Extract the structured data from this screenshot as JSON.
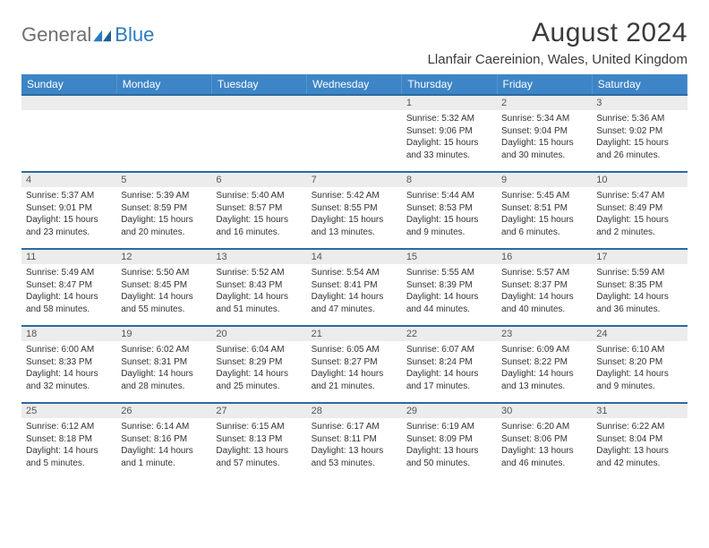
{
  "logo": {
    "text1": "General",
    "text2": "Blue"
  },
  "title": "August 2024",
  "location": "Llanfair Caereinion, Wales, United Kingdom",
  "colors": {
    "header_bg": "#3d85c6",
    "header_text": "#ffffff",
    "row_border": "#2b6aa0",
    "daynum_bg": "#ececec",
    "logo_gray": "#6f6f6f",
    "logo_blue": "#2b7bbf"
  },
  "day_headers": [
    "Sunday",
    "Monday",
    "Tuesday",
    "Wednesday",
    "Thursday",
    "Friday",
    "Saturday"
  ],
  "weeks": [
    [
      null,
      null,
      null,
      null,
      {
        "n": "1",
        "sr": "5:32 AM",
        "ss": "9:06 PM",
        "dl": "15 hours and 33 minutes."
      },
      {
        "n": "2",
        "sr": "5:34 AM",
        "ss": "9:04 PM",
        "dl": "15 hours and 30 minutes."
      },
      {
        "n": "3",
        "sr": "5:36 AM",
        "ss": "9:02 PM",
        "dl": "15 hours and 26 minutes."
      }
    ],
    [
      {
        "n": "4",
        "sr": "5:37 AM",
        "ss": "9:01 PM",
        "dl": "15 hours and 23 minutes."
      },
      {
        "n": "5",
        "sr": "5:39 AM",
        "ss": "8:59 PM",
        "dl": "15 hours and 20 minutes."
      },
      {
        "n": "6",
        "sr": "5:40 AM",
        "ss": "8:57 PM",
        "dl": "15 hours and 16 minutes."
      },
      {
        "n": "7",
        "sr": "5:42 AM",
        "ss": "8:55 PM",
        "dl": "15 hours and 13 minutes."
      },
      {
        "n": "8",
        "sr": "5:44 AM",
        "ss": "8:53 PM",
        "dl": "15 hours and 9 minutes."
      },
      {
        "n": "9",
        "sr": "5:45 AM",
        "ss": "8:51 PM",
        "dl": "15 hours and 6 minutes."
      },
      {
        "n": "10",
        "sr": "5:47 AM",
        "ss": "8:49 PM",
        "dl": "15 hours and 2 minutes."
      }
    ],
    [
      {
        "n": "11",
        "sr": "5:49 AM",
        "ss": "8:47 PM",
        "dl": "14 hours and 58 minutes."
      },
      {
        "n": "12",
        "sr": "5:50 AM",
        "ss": "8:45 PM",
        "dl": "14 hours and 55 minutes."
      },
      {
        "n": "13",
        "sr": "5:52 AM",
        "ss": "8:43 PM",
        "dl": "14 hours and 51 minutes."
      },
      {
        "n": "14",
        "sr": "5:54 AM",
        "ss": "8:41 PM",
        "dl": "14 hours and 47 minutes."
      },
      {
        "n": "15",
        "sr": "5:55 AM",
        "ss": "8:39 PM",
        "dl": "14 hours and 44 minutes."
      },
      {
        "n": "16",
        "sr": "5:57 AM",
        "ss": "8:37 PM",
        "dl": "14 hours and 40 minutes."
      },
      {
        "n": "17",
        "sr": "5:59 AM",
        "ss": "8:35 PM",
        "dl": "14 hours and 36 minutes."
      }
    ],
    [
      {
        "n": "18",
        "sr": "6:00 AM",
        "ss": "8:33 PM",
        "dl": "14 hours and 32 minutes."
      },
      {
        "n": "19",
        "sr": "6:02 AM",
        "ss": "8:31 PM",
        "dl": "14 hours and 28 minutes."
      },
      {
        "n": "20",
        "sr": "6:04 AM",
        "ss": "8:29 PM",
        "dl": "14 hours and 25 minutes."
      },
      {
        "n": "21",
        "sr": "6:05 AM",
        "ss": "8:27 PM",
        "dl": "14 hours and 21 minutes."
      },
      {
        "n": "22",
        "sr": "6:07 AM",
        "ss": "8:24 PM",
        "dl": "14 hours and 17 minutes."
      },
      {
        "n": "23",
        "sr": "6:09 AM",
        "ss": "8:22 PM",
        "dl": "14 hours and 13 minutes."
      },
      {
        "n": "24",
        "sr": "6:10 AM",
        "ss": "8:20 PM",
        "dl": "14 hours and 9 minutes."
      }
    ],
    [
      {
        "n": "25",
        "sr": "6:12 AM",
        "ss": "8:18 PM",
        "dl": "14 hours and 5 minutes."
      },
      {
        "n": "26",
        "sr": "6:14 AM",
        "ss": "8:16 PM",
        "dl": "14 hours and 1 minute."
      },
      {
        "n": "27",
        "sr": "6:15 AM",
        "ss": "8:13 PM",
        "dl": "13 hours and 57 minutes."
      },
      {
        "n": "28",
        "sr": "6:17 AM",
        "ss": "8:11 PM",
        "dl": "13 hours and 53 minutes."
      },
      {
        "n": "29",
        "sr": "6:19 AM",
        "ss": "8:09 PM",
        "dl": "13 hours and 50 minutes."
      },
      {
        "n": "30",
        "sr": "6:20 AM",
        "ss": "8:06 PM",
        "dl": "13 hours and 46 minutes."
      },
      {
        "n": "31",
        "sr": "6:22 AM",
        "ss": "8:04 PM",
        "dl": "13 hours and 42 minutes."
      }
    ]
  ],
  "labels": {
    "sunrise": "Sunrise: ",
    "sunset": "Sunset: ",
    "daylight": "Daylight: "
  }
}
